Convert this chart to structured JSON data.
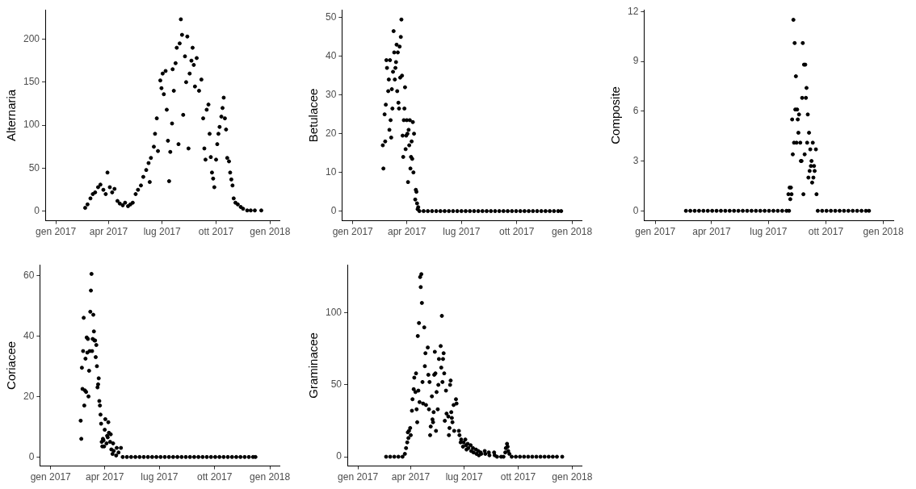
{
  "chart_data": [
    {
      "type": "scatter",
      "ylabel": "Alternaria",
      "grid": false,
      "marker": "circle",
      "xlim": [
        "2016-12-14",
        "2018-01-17"
      ],
      "ylim": [
        -11,
        234
      ],
      "yticks": [
        0,
        50,
        100,
        150,
        200
      ],
      "xticks": [
        {
          "value": "2017-01-01",
          "label": "gen 2017"
        },
        {
          "value": "2017-04-01",
          "label": "apr 2017"
        },
        {
          "value": "2017-07-01",
          "label": "lug 2017"
        },
        {
          "value": "2017-10-01",
          "label": "ott 2017"
        },
        {
          "value": "2018-01-01",
          "label": "gen 2018"
        }
      ],
      "series": [
        {
          "color": "#000000",
          "x": [
            "2017-02-20",
            "2017-02-24",
            "2017-03-01",
            "2017-03-05",
            "2017-03-09",
            "2017-03-14",
            "2017-03-18",
            "2017-03-23",
            "2017-03-27",
            "2017-03-30",
            "2017-04-03",
            "2017-04-07",
            "2017-04-11",
            "2017-04-16",
            "2017-04-20",
            "2017-04-25",
            "2017-04-29",
            "2017-05-04",
            "2017-05-08",
            "2017-05-12",
            "2017-05-17",
            "2017-05-21",
            "2017-05-26",
            "2017-05-30",
            "2017-06-04",
            "2017-06-08",
            "2017-06-10",
            "2017-06-12",
            "2017-06-17",
            "2017-06-19",
            "2017-06-22",
            "2017-06-24",
            "2017-06-28",
            "2017-06-30",
            "2017-07-02",
            "2017-07-04",
            "2017-07-07",
            "2017-07-09",
            "2017-07-11",
            "2017-07-13",
            "2017-07-15",
            "2017-07-18",
            "2017-07-19",
            "2017-07-21",
            "2017-07-24",
            "2017-07-26",
            "2017-07-29",
            "2017-07-31",
            "2017-08-02",
            "2017-08-04",
            "2017-08-06",
            "2017-08-09",
            "2017-08-11",
            "2017-08-13",
            "2017-08-15",
            "2017-08-17",
            "2017-08-20",
            "2017-08-22",
            "2017-08-24",
            "2017-08-26",
            "2017-08-29",
            "2017-09-02",
            "2017-09-06",
            "2017-09-09",
            "2017-09-11",
            "2017-09-13",
            "2017-09-15",
            "2017-09-18",
            "2017-09-20",
            "2017-09-22",
            "2017-09-24",
            "2017-09-26",
            "2017-09-28",
            "2017-10-01",
            "2017-10-03",
            "2017-10-05",
            "2017-10-07",
            "2017-10-10",
            "2017-10-12",
            "2017-10-14",
            "2017-10-16",
            "2017-10-18",
            "2017-10-20",
            "2017-10-23",
            "2017-10-25",
            "2017-10-27",
            "2017-10-29",
            "2017-10-31",
            "2017-11-03",
            "2017-11-07",
            "2017-11-12",
            "2017-11-16",
            "2017-11-23",
            "2017-11-29",
            "2017-12-06",
            "2017-12-17"
          ],
          "values": [
            4,
            8,
            15,
            20,
            22,
            28,
            31,
            25,
            20,
            45,
            28,
            22,
            26,
            12,
            9,
            7,
            10,
            6,
            8,
            10,
            20,
            25,
            30,
            40,
            48,
            56,
            34,
            62,
            75,
            90,
            108,
            70,
            152,
            143,
            160,
            136,
            163,
            118,
            82,
            35,
            69,
            102,
            165,
            140,
            172,
            190,
            78,
            195,
            223,
            205,
            112,
            180,
            150,
            203,
            73,
            160,
            175,
            190,
            170,
            145,
            178,
            140,
            153,
            108,
            73,
            60,
            118,
            124,
            90,
            63,
            45,
            38,
            28,
            60,
            78,
            90,
            98,
            110,
            120,
            132,
            108,
            95,
            62,
            58,
            45,
            37,
            30,
            15,
            10,
            8,
            5,
            3,
            1,
            1,
            1,
            1
          ]
        }
      ]
    },
    {
      "type": "scatter",
      "ylabel": "Betulacee",
      "grid": false,
      "marker": "circle",
      "xlim": [
        "2016-12-14",
        "2018-01-17"
      ],
      "ylim": [
        -2.5,
        52
      ],
      "yticks": [
        0,
        10,
        20,
        30,
        40,
        50
      ],
      "xticks": [
        {
          "value": "2017-01-01",
          "label": "gen 2017"
        },
        {
          "value": "2017-04-01",
          "label": "apr 2017"
        },
        {
          "value": "2017-07-01",
          "label": "lug 2017"
        },
        {
          "value": "2017-10-01",
          "label": "ott 2017"
        },
        {
          "value": "2018-01-01",
          "label": "gen 2018"
        }
      ],
      "series": [
        {
          "color": "#000000",
          "x": [
            "2017-02-20",
            "2017-02-21",
            "2017-02-23",
            "2017-02-24",
            "2017-02-25",
            "2017-02-26",
            "2017-02-27",
            "2017-03-01",
            "2017-03-02",
            "2017-03-04",
            "2017-03-03",
            "2017-03-05",
            "2017-03-06",
            "2017-03-07",
            "2017-03-09",
            "2017-03-08",
            "2017-03-10",
            "2017-03-11",
            "2017-03-12",
            "2017-03-13",
            "2017-03-15",
            "2017-03-14",
            "2017-03-17",
            "2017-03-16",
            "2017-03-19",
            "2017-03-18",
            "2017-03-21",
            "2017-03-20",
            "2017-03-23",
            "2017-03-22",
            "2017-03-24",
            "2017-03-25",
            "2017-03-26",
            "2017-03-27",
            "2017-03-28",
            "2017-03-29",
            "2017-03-30",
            "2017-04-01",
            "2017-03-31",
            "2017-04-03",
            "2017-04-02",
            "2017-04-05",
            "2017-04-04",
            "2017-04-07",
            "2017-04-06",
            "2017-04-09",
            "2017-04-08",
            "2017-04-11",
            "2017-04-10",
            "2017-04-13",
            "2017-04-12",
            "2017-04-16",
            "2017-04-15",
            "2017-04-18",
            "2017-04-17",
            "2017-04-20",
            "2017-04-19",
            "2017-04-22",
            "2017-04-29",
            "2017-05-06",
            "2017-05-13",
            "2017-05-20",
            "2017-05-27",
            "2017-06-03",
            "2017-06-10",
            "2017-06-17",
            "2017-06-24",
            "2017-07-01",
            "2017-07-08",
            "2017-07-15",
            "2017-07-22",
            "2017-07-29",
            "2017-08-05",
            "2017-08-12",
            "2017-08-19",
            "2017-08-26",
            "2017-09-02",
            "2017-09-09",
            "2017-09-16",
            "2017-09-23",
            "2017-09-30",
            "2017-10-07",
            "2017-10-14",
            "2017-10-21",
            "2017-10-28",
            "2017-11-04",
            "2017-11-11",
            "2017-11-18",
            "2017-11-25",
            "2017-12-02",
            "2017-12-09",
            "2017-12-14"
          ],
          "values": [
            17,
            11,
            25,
            18,
            27.5,
            39,
            37,
            31,
            34,
            39,
            21,
            23.5,
            19,
            31.5,
            36,
            26.5,
            46.5,
            41,
            34,
            37,
            43,
            38.5,
            41,
            31,
            26.5,
            28,
            34.5,
            42.5,
            49.5,
            45,
            35,
            19.5,
            14,
            23.5,
            26.5,
            32,
            16,
            23.5,
            19.5,
            7.5,
            20,
            17,
            21,
            11,
            23.5,
            18,
            14,
            23,
            13.5,
            20,
            10,
            5.5,
            3,
            2,
            5,
            1,
            0.5,
            0,
            0,
            0,
            0,
            0,
            0,
            0,
            0,
            0,
            0,
            0,
            0,
            0,
            0,
            0,
            0,
            0,
            0,
            0,
            0,
            0,
            0,
            0,
            0,
            0,
            0,
            0,
            0,
            0,
            0,
            0,
            0,
            0,
            0,
            0
          ]
        }
      ]
    },
    {
      "type": "scatter",
      "ylabel": "Composite",
      "grid": false,
      "marker": "circle",
      "xlim": [
        "2016-12-14",
        "2018-01-17"
      ],
      "ylim": [
        -0.6,
        12.1
      ],
      "yticks": [
        0,
        3,
        6,
        9,
        12
      ],
      "xticks": [
        {
          "value": "2017-01-01",
          "label": "gen 2017"
        },
        {
          "value": "2017-04-01",
          "label": "apr 2017"
        },
        {
          "value": "2017-07-01",
          "label": "lug 2017"
        },
        {
          "value": "2017-10-01",
          "label": "ott 2017"
        },
        {
          "value": "2018-01-01",
          "label": "gen 2018"
        }
      ],
      "series": [
        {
          "color": "#000000",
          "x": [
            "2017-02-19",
            "2017-02-26",
            "2017-03-05",
            "2017-03-12",
            "2017-03-19",
            "2017-03-26",
            "2017-04-02",
            "2017-04-09",
            "2017-04-16",
            "2017-04-23",
            "2017-04-30",
            "2017-05-07",
            "2017-05-14",
            "2017-05-21",
            "2017-05-28",
            "2017-06-04",
            "2017-06-11",
            "2017-06-18",
            "2017-06-25",
            "2017-07-02",
            "2017-07-09",
            "2017-07-16",
            "2017-07-23",
            "2017-07-30",
            "2017-08-03",
            "2017-08-02",
            "2017-08-04",
            "2017-08-05",
            "2017-08-06",
            "2017-08-07",
            "2017-08-08",
            "2017-08-09",
            "2017-08-10",
            "2017-08-11",
            "2017-08-12",
            "2017-08-13",
            "2017-08-14",
            "2017-08-15",
            "2017-08-16",
            "2017-08-17",
            "2017-08-18",
            "2017-08-19",
            "2017-08-21",
            "2017-08-22",
            "2017-08-23",
            "2017-08-25",
            "2017-08-24",
            "2017-08-26",
            "2017-08-27",
            "2017-08-28",
            "2017-08-29",
            "2017-08-30",
            "2017-08-31",
            "2017-09-01",
            "2017-09-02",
            "2017-09-03",
            "2017-09-04",
            "2017-09-05",
            "2017-09-06",
            "2017-09-07",
            "2017-09-08",
            "2017-09-09",
            "2017-09-10",
            "2017-09-11",
            "2017-09-12",
            "2017-09-13",
            "2017-09-15",
            "2017-09-16",
            "2017-09-18",
            "2017-09-25",
            "2017-10-02",
            "2017-10-09",
            "2017-10-16",
            "2017-10-23",
            "2017-10-30",
            "2017-11-06",
            "2017-11-13",
            "2017-11-20",
            "2017-11-27",
            "2017-12-04",
            "2017-12-09"
          ],
          "values": [
            0,
            0,
            0,
            0,
            0,
            0,
            0,
            0,
            0,
            0,
            0,
            0,
            0,
            0,
            0,
            0,
            0,
            0,
            0,
            0,
            0,
            0,
            0,
            0,
            0,
            1,
            1.4,
            0.7,
            1.4,
            1,
            5.5,
            3.4,
            11.5,
            4.1,
            10.1,
            6.1,
            8.1,
            4.1,
            6.1,
            5.5,
            4.7,
            5.8,
            4.1,
            3,
            3,
            10.1,
            6.8,
            1,
            8.8,
            3.4,
            8.8,
            6.8,
            7.4,
            4.1,
            5.8,
            2,
            4.7,
            2.4,
            3.7,
            2.7,
            3,
            1.7,
            4.1,
            2,
            2.7,
            2.4,
            3.7,
            1,
            0,
            0,
            0,
            0,
            0,
            0,
            0,
            0,
            0,
            0,
            0,
            0,
            0
          ]
        }
      ]
    },
    {
      "type": "scatter",
      "ylabel": "Coriacee",
      "grid": false,
      "marker": "circle",
      "xlim": [
        "2016-12-14",
        "2018-01-17"
      ],
      "ylim": [
        -3,
        63.5
      ],
      "yticks": [
        0,
        20,
        40,
        60
      ],
      "xticks": [
        {
          "value": "2017-01-01",
          "label": "gen 2017"
        },
        {
          "value": "2017-04-01",
          "label": "apr 2017"
        },
        {
          "value": "2017-07-01",
          "label": "lug 2017"
        },
        {
          "value": "2017-10-01",
          "label": "ott 2017"
        },
        {
          "value": "2018-01-01",
          "label": "gen 2018"
        }
      ],
      "series": [
        {
          "color": "#000000",
          "x": [
            "2017-02-20",
            "2017-02-21",
            "2017-02-23",
            "2017-02-22",
            "2017-02-25",
            "2017-02-24",
            "2017-02-26",
            "2017-02-27",
            "2017-02-28",
            "2017-03-01",
            "2017-03-02",
            "2017-03-04",
            "2017-03-03",
            "2017-03-05",
            "2017-03-06",
            "2017-03-07",
            "2017-03-08",
            "2017-03-10",
            "2017-03-09",
            "2017-03-11",
            "2017-03-12",
            "2017-03-13",
            "2017-03-14",
            "2017-03-15",
            "2017-03-16",
            "2017-03-17",
            "2017-03-18",
            "2017-03-19",
            "2017-03-20",
            "2017-03-21",
            "2017-03-22",
            "2017-03-23",
            "2017-03-24",
            "2017-03-25",
            "2017-03-26",
            "2017-03-27",
            "2017-03-28",
            "2017-03-29",
            "2017-03-31",
            "2017-03-30",
            "2017-04-02",
            "2017-04-01",
            "2017-04-04",
            "2017-04-05",
            "2017-04-07",
            "2017-04-08",
            "2017-04-06",
            "2017-04-11",
            "2017-04-10",
            "2017-04-12",
            "2017-04-15",
            "2017-04-16",
            "2017-04-14",
            "2017-04-20",
            "2017-04-21",
            "2017-04-24",
            "2017-04-28",
            "2017-05-01",
            "2017-05-08",
            "2017-05-15",
            "2017-05-22",
            "2017-05-29",
            "2017-06-05",
            "2017-06-12",
            "2017-06-19",
            "2017-06-26",
            "2017-07-03",
            "2017-07-10",
            "2017-07-17",
            "2017-07-24",
            "2017-07-31",
            "2017-08-07",
            "2017-08-14",
            "2017-08-21",
            "2017-08-28",
            "2017-09-04",
            "2017-09-11",
            "2017-09-18",
            "2017-09-25",
            "2017-10-02",
            "2017-10-09",
            "2017-10-16",
            "2017-10-23",
            "2017-10-30",
            "2017-11-06",
            "2017-11-13",
            "2017-11-20",
            "2017-11-27",
            "2017-12-04",
            "2017-12-08"
          ],
          "values": [
            12,
            6,
            22.5,
            29.5,
            46,
            35,
            17,
            22,
            32.5,
            21.5,
            39.5,
            39,
            34.5,
            20,
            28.5,
            35,
            48,
            60.5,
            55,
            35,
            39,
            47,
            41.5,
            38.5,
            38.5,
            33,
            37,
            30,
            23,
            24,
            26,
            18.5,
            17,
            14,
            11,
            5,
            3.5,
            6,
            3.5,
            5.5,
            12.5,
            9,
            4.5,
            7,
            11.5,
            8,
            6.5,
            7.5,
            5,
            2.5,
            4.5,
            2,
            1,
            0.5,
            3,
            1.5,
            3,
            0,
            0,
            0,
            0,
            0,
            0,
            0,
            0,
            0,
            0,
            0,
            0,
            0,
            0,
            0,
            0,
            0,
            0,
            0,
            0,
            0,
            0,
            0,
            0,
            0,
            0,
            0,
            0,
            0,
            0,
            0,
            0,
            0
          ]
        }
      ]
    },
    {
      "type": "scatter",
      "ylabel": "Graminacee",
      "grid": false,
      "marker": "circle",
      "xlim": [
        "2016-12-14",
        "2018-01-17"
      ],
      "ylim": [
        -6.5,
        133.5
      ],
      "yticks": [
        0,
        50,
        100
      ],
      "xticks": [
        {
          "value": "2017-01-01",
          "label": "gen 2017"
        },
        {
          "value": "2017-04-01",
          "label": "apr 2017"
        },
        {
          "value": "2017-07-01",
          "label": "lug 2017"
        },
        {
          "value": "2017-10-01",
          "label": "ott 2017"
        },
        {
          "value": "2018-01-01",
          "label": "gen 2018"
        }
      ],
      "series": [
        {
          "color": "#000000",
          "x": [
            "2017-02-18",
            "2017-02-25",
            "2017-03-04",
            "2017-03-11",
            "2017-03-18",
            "2017-03-22",
            "2017-03-24",
            "2017-03-26",
            "2017-03-27",
            "2017-03-28",
            "2017-03-29",
            "2017-03-31",
            "2017-04-01",
            "2017-04-03",
            "2017-04-04",
            "2017-04-06",
            "2017-04-07",
            "2017-04-09",
            "2017-04-10",
            "2017-04-11",
            "2017-04-12",
            "2017-04-13",
            "2017-04-15",
            "2017-04-16",
            "2017-04-14",
            "2017-04-17",
            "2017-04-18",
            "2017-04-19",
            "2017-04-20",
            "2017-04-21",
            "2017-04-22",
            "2017-04-24",
            "2017-04-25",
            "2017-04-26",
            "2017-04-27",
            "2017-04-30",
            "2017-05-01",
            "2017-05-02",
            "2017-05-03",
            "2017-05-04",
            "2017-05-05",
            "2017-05-07",
            "2017-05-08",
            "2017-05-09",
            "2017-05-10",
            "2017-05-11",
            "2017-05-12",
            "2017-05-14",
            "2017-05-15",
            "2017-05-13",
            "2017-05-18",
            "2017-05-19",
            "2017-05-17",
            "2017-05-22",
            "2017-05-23",
            "2017-05-24",
            "2017-05-25",
            "2017-05-26",
            "2017-05-27",
            "2017-05-28",
            "2017-05-29",
            "2017-05-31",
            "2017-06-01",
            "2017-06-04",
            "2017-06-05",
            "2017-06-06",
            "2017-06-07",
            "2017-06-08",
            "2017-06-09",
            "2017-06-10",
            "2017-06-11",
            "2017-06-13",
            "2017-06-14",
            "2017-06-17",
            "2017-06-18",
            "2017-06-22",
            "2017-06-23",
            "2017-06-25",
            "2017-06-26",
            "2017-06-29",
            "2017-06-30",
            "2017-07-03",
            "2017-07-04",
            "2017-07-05",
            "2017-07-07",
            "2017-07-08",
            "2017-07-12",
            "2017-07-13",
            "2017-07-16",
            "2017-07-17",
            "2017-07-21",
            "2017-07-22",
            "2017-07-25",
            "2017-07-26",
            "2017-07-29",
            "2017-07-30",
            "2017-08-05",
            "2017-08-06",
            "2017-08-12",
            "2017-08-13",
            "2017-08-21",
            "2017-08-22",
            "2017-08-26",
            "2017-09-02",
            "2017-09-06",
            "2017-09-09",
            "2017-09-10",
            "2017-09-12",
            "2017-09-13",
            "2017-09-14",
            "2017-09-16",
            "2017-09-20",
            "2017-09-27",
            "2017-10-04",
            "2017-10-11",
            "2017-10-18",
            "2017-10-25",
            "2017-11-01",
            "2017-11-08",
            "2017-11-15",
            "2017-11-22",
            "2017-11-29",
            "2017-12-06",
            "2017-12-15"
          ],
          "values": [
            0,
            0,
            0,
            0,
            0,
            2,
            6,
            10,
            17,
            13,
            18,
            20,
            15,
            32,
            40,
            47,
            55,
            45,
            58,
            33,
            24,
            84,
            93,
            38,
            46,
            125,
            118,
            127,
            107,
            52,
            37,
            90,
            63,
            72,
            36,
            76,
            57,
            33,
            52,
            15,
            21,
            42,
            26,
            24,
            31,
            57,
            73,
            18,
            45,
            58,
            50,
            68,
            33,
            77,
            62,
            98,
            52,
            68,
            72,
            58,
            25,
            46,
            30,
            28,
            15,
            20,
            50,
            53,
            31,
            27,
            24,
            36,
            18,
            40,
            37,
            18,
            15,
            10,
            12,
            7,
            10,
            12,
            8,
            5,
            9,
            6,
            8,
            4,
            6,
            3,
            5,
            2,
            4,
            1,
            3,
            2,
            4,
            2,
            3,
            1,
            3,
            1,
            0,
            0,
            0,
            3,
            6,
            9,
            7,
            4,
            2,
            0,
            0,
            0,
            0,
            0,
            0,
            0,
            0,
            0,
            0,
            0,
            0,
            0
          ]
        }
      ]
    }
  ]
}
